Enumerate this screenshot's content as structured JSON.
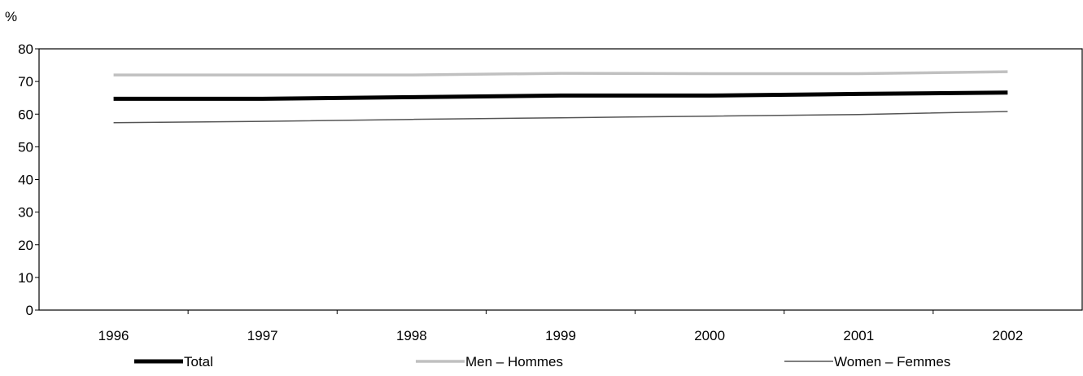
{
  "chart_data": {
    "type": "line",
    "ylabel": "%",
    "xlabel": "",
    "categories": [
      "1996",
      "1997",
      "1998",
      "1999",
      "2000",
      "2001",
      "2002"
    ],
    "ylim": [
      0,
      80
    ],
    "yticks": [
      0,
      10,
      20,
      30,
      40,
      50,
      60,
      70,
      80
    ],
    "grid": false,
    "legend_position": "bottom",
    "series": [
      {
        "name": "Total",
        "values": [
          64.7,
          64.7,
          65.2,
          65.7,
          65.7,
          66.2,
          66.6
        ],
        "color": "#000000",
        "style": "thick"
      },
      {
        "name": "Men – Hommes",
        "values": [
          72.0,
          72.0,
          72.0,
          72.5,
          72.4,
          72.4,
          73.0
        ],
        "color": "#c0c0c0",
        "style": "medium"
      },
      {
        "name": "Women – Femmes",
        "values": [
          57.4,
          57.8,
          58.4,
          58.9,
          59.4,
          59.9,
          60.8
        ],
        "color": "#555555",
        "style": "thin"
      }
    ]
  }
}
